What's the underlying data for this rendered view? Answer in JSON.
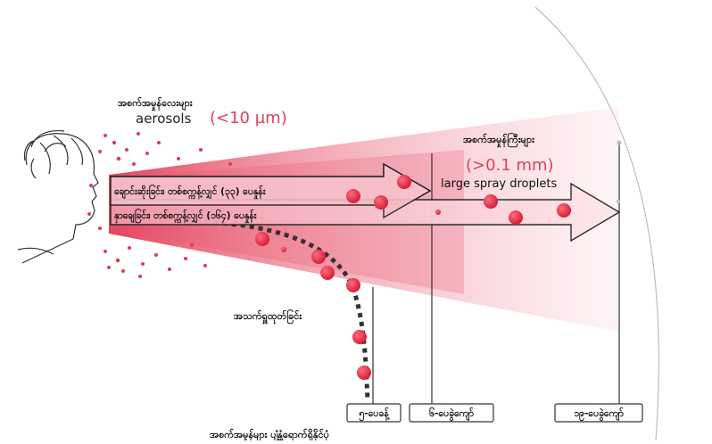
{
  "labels": {
    "aerosols_my": "အစက်အမှုန်လေးများ",
    "aerosols_en": "aerosols",
    "aerosols_size": "(<10 µm)",
    "droplets_my": "အစက်အမှုန်ကြီးများ",
    "droplets_size": "(>0.1 mm)",
    "droplets_en": "large spray droplets",
    "sneeze": "ချောင်းဆိုးခြင်း၊ တစ်စက္ကန့်လျှင် (၃၃) ပေနှုန်း",
    "cough": "နှာချေခြင်း၊ တစ်စက္ကန့်လျှင် (၁၆၄) ပေနှုန်း",
    "breathing": "အသက်ရှူထုတ်ခြင်း",
    "bottom_caption": "အစက်အမှုန်များ ပျံ့နှံ့ရောက်ရှိနိုင်ပုံ"
  },
  "distances": [
    {
      "label": "၅-ပေခန့်"
    },
    {
      "label": "၆-ပေခွဲကျော်"
    },
    {
      "label": "၁၉-ပေခွဲကျော်"
    }
  ],
  "colors": {
    "cone": "#e64a63",
    "cone_light": "#fbe3e7",
    "droplet": "#e8253f",
    "particle": "#d94055",
    "arrow_fill": "#f7c9d1"
  }
}
